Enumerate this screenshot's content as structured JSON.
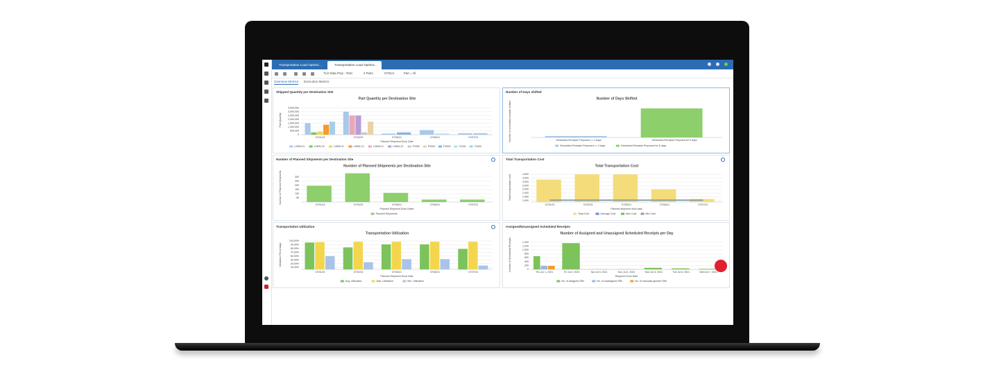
{
  "tabs": [
    "Transportation Load Optimiz...",
    "Transportation Load Optimiz..."
  ],
  "toolbar": [
    "TLO Data Prep - TestI",
    "4 Parts",
    "07/01/1",
    "Part = All"
  ],
  "subtabs": [
    "Overview Metrics",
    "Execution Metrics"
  ],
  "panels": [
    {
      "title": "Shipped Quantity per Destination Site",
      "chart": {
        "type": "bar",
        "title": "Part Quantity per Destination Site",
        "ylabel": "Part Quantity",
        "xlabel": "Planned Shipment Dock Date",
        "categories": [
          "07/01/21",
          "07/02/21",
          "07/05/21",
          "07/06/21",
          "07/07/21"
        ],
        "ylim": [
          0,
          3800000
        ],
        "yticks": [
          0,
          {
            "value": 500000,
            "label": "500,000"
          },
          {
            "value": 1000000,
            "label": "1,000,000"
          },
          {
            "value": 1500000,
            "label": "1,500,000"
          },
          {
            "value": 2000000,
            "label": "2,000,000"
          },
          {
            "value": 2500000,
            "label": "2,500,000"
          },
          {
            "value": 3000000,
            "label": "3,000,000"
          },
          {
            "value": 3500000,
            "label": "3,500,000"
          }
        ],
        "grid": true,
        "series": [
          {
            "name": "L2505-21",
            "color": "#a9c9ea",
            "values": [
              1500000,
              3000000,
              150000,
              600000,
              200000
            ]
          },
          {
            "name": "L2505-22",
            "color": "#7cc35b",
            "values": [
              300000,
              null,
              null,
              null,
              null
            ]
          },
          {
            "name": "L3505-11",
            "color": "#f3d64e",
            "values": [
              400000,
              null,
              null,
              null,
              null
            ]
          },
          {
            "name": "L3505-12",
            "color": "#f49b2c",
            "values": [
              1300000,
              null,
              null,
              null,
              null
            ]
          },
          {
            "name": "L3505-21",
            "color": "#e9a8b8",
            "values": [
              null,
              2500000,
              null,
              null,
              null
            ]
          },
          {
            "name": "L3505-22",
            "color": "#b79ed8",
            "values": [
              null,
              2500000,
              null,
              null,
              null
            ]
          },
          {
            "name": "P1000",
            "color": "#c9c9c9",
            "values": [
              null,
              300000,
              null,
              null,
              null
            ]
          },
          {
            "name": "P2000",
            "color": "#e9d3a6",
            "values": [
              null,
              1700000,
              null,
              null,
              null
            ]
          },
          {
            "name": "P3000",
            "color": "#8cb2e2",
            "values": [
              null,
              null,
              300000,
              null,
              null
            ]
          },
          {
            "name": "T1000",
            "color": "#b7dded",
            "values": [
              null,
              null,
              null,
              150000,
              null
            ]
          },
          {
            "name": "T2000",
            "color": "#a6cfe6",
            "values": [
              1700000,
              null,
              null,
              null,
              200000
            ]
          }
        ]
      }
    },
    {
      "title": "Number of Days shifted",
      "chart": {
        "type": "bar",
        "title": "Number of Days Shifted",
        "ylabel": "Number of scheduled receipts shifted",
        "categories": [
          "Scheduled Receipts Preponed <= 4 days",
          "Scheduled Receipts Preponed for 5 days"
        ],
        "ylim": [
          0,
          11
        ],
        "grid": true,
        "series": [
          {
            "name": "Scheduled Receipts Preponed <= 4 days",
            "color": "#a9c9ea",
            "values": [
              0.5,
              null
            ]
          },
          {
            "name": "Scheduled Receipts Preponed for 5 days",
            "color": "#8ccf6b",
            "values": [
              null,
              10
            ]
          }
        ]
      }
    },
    {
      "title": "Number of Planned Shipments per Destination Site",
      "chart": {
        "type": "bar",
        "title": "Number of Planned Shipments per Destination Site",
        "ylabel": "Number of Planned Shipments",
        "xlabel": "Planned Shipment Dock Dates",
        "categories": [
          "07/01/21",
          "07/02/21",
          "07/05/21",
          "07/06/21",
          "07/07/21"
        ],
        "ylim": [
          0,
          350
        ],
        "yticks": [
          50,
          100,
          150,
          200,
          250,
          300
        ],
        "grid": true,
        "series": [
          {
            "name": "Planned Shipments",
            "color": "#8ccf6b",
            "values": [
              195,
              345,
              110,
              30,
              30
            ]
          }
        ]
      }
    },
    {
      "title": "Total Transportation Cost",
      "chart": {
        "type": "bar",
        "title": "Total Transportation Cost",
        "ylabel": "Total transportation cost",
        "xlabel": "Planned shipment dock date",
        "categories": [
          "07/01/21",
          "07/02/21",
          "07/05/21",
          "07/06/21",
          "07/07/21"
        ],
        "ylim": [
          800,
          4700
        ],
        "yticks": [
          {
            "value": 1000,
            "label": "1,000"
          },
          {
            "value": 1500,
            "label": "1,500"
          },
          {
            "value": 2000,
            "label": "2,000"
          },
          {
            "value": 2500,
            "label": "2,500"
          },
          {
            "value": 3000,
            "label": "3,000"
          },
          {
            "value": 3500,
            "label": "3,500"
          },
          {
            "value": 4000,
            "label": "4,000"
          },
          {
            "value": 4500,
            "label": "4,500"
          }
        ],
        "grid": true,
        "series": [
          {
            "name": "Total Cost",
            "color": "#f5dc7a",
            "values": [
              3800,
              4500,
              4500,
              2500,
              1200
            ]
          },
          {
            "name": "Average Cost",
            "color": "#5b8fd1",
            "type": "line",
            "values": [
              1050,
              1050,
              1050,
              1050,
              1050
            ]
          },
          {
            "name": "Max Cost",
            "color": "#6bbf4a",
            "type": "line",
            "values": [
              1100,
              1100,
              1100,
              1100,
              1100
            ]
          },
          {
            "name": "Min Cost",
            "color": "#999999",
            "type": "line",
            "values": [
              1000,
              1000,
              1000,
              1000,
              1000
            ]
          }
        ]
      }
    },
    {
      "title": "Transportation Utilization",
      "chart": {
        "type": "bar",
        "title": "Transportation Utilization",
        "ylabel": "Utilization Percentage",
        "xlabel": "Planned Shipment Dock Date",
        "categories": [
          "07/01/21",
          "07/02/21",
          "07/05/21",
          "07/06/21",
          "07/07/21"
        ],
        "ylim": [
          25,
          102
        ],
        "yticks": [
          {
            "value": 30,
            "label": "30.00%"
          },
          {
            "value": 40,
            "label": "40.00%"
          },
          {
            "value": 50,
            "label": "50.00%"
          },
          {
            "value": 60,
            "label": "60.00%"
          },
          {
            "value": 70,
            "label": "70.00%"
          },
          {
            "value": 80,
            "label": "80.00%"
          },
          {
            "value": 90,
            "label": "90.00%"
          },
          {
            "value": 100,
            "label": "100.00%"
          }
        ],
        "grid": true,
        "series": [
          {
            "name": "Avg. Utilization",
            "color": "#7cc35b",
            "values": [
              96,
              83,
              91,
              91,
              79
            ]
          },
          {
            "name": "Max. Utilization",
            "color": "#f3d64e",
            "values": [
              97,
              98,
              98,
              98,
              98
            ]
          },
          {
            "name": "Min. Utilization",
            "color": "#a9c4e8",
            "values": [
              60,
              44,
              52,
              52,
              35
            ]
          }
        ]
      }
    },
    {
      "title": "Assigned/Unassigned Scheduled Receipts",
      "chart": {
        "type": "bar",
        "title": "Number of Assigned and Unassigned Scheduled Receipts per Day",
        "ylabel": "Number of Scheduled Receipts",
        "xlabel": "Required Dock Date",
        "categories": [
          "Thu Jul 1, 2021",
          "Fri Jul 2, 2021",
          "Sat Jul 3, 2021",
          "Sun Jul 4, 2021",
          "Mon Jul 5, 2021",
          "Tue Jul 6, 2021",
          "Wed Jul 7, 2021"
        ],
        "ylim": [
          0,
          1500
        ],
        "yticks": [
          0,
          200,
          400,
          600,
          800,
          {
            "value": 1000,
            "label": "1,000"
          },
          {
            "value": 1200,
            "label": "1,200"
          },
          {
            "value": 1400,
            "label": "1,400"
          }
        ],
        "grid": true,
        "series": [
          {
            "name": "No. of assigned SRs",
            "color": "#7cc35b",
            "values": [
              680,
              1350,
              10,
              10,
              80,
              50,
              30
            ]
          },
          {
            "name": "No. of unassigned SRs",
            "color": "#9ab8e4",
            "values": [
              180,
              null,
              null,
              null,
              null,
              null,
              null
            ]
          },
          {
            "name": "No. of manually ignored SRs",
            "color": "#f49b2c",
            "values": [
              180,
              null,
              null,
              null,
              null,
              null,
              null
            ]
          }
        ]
      }
    }
  ]
}
